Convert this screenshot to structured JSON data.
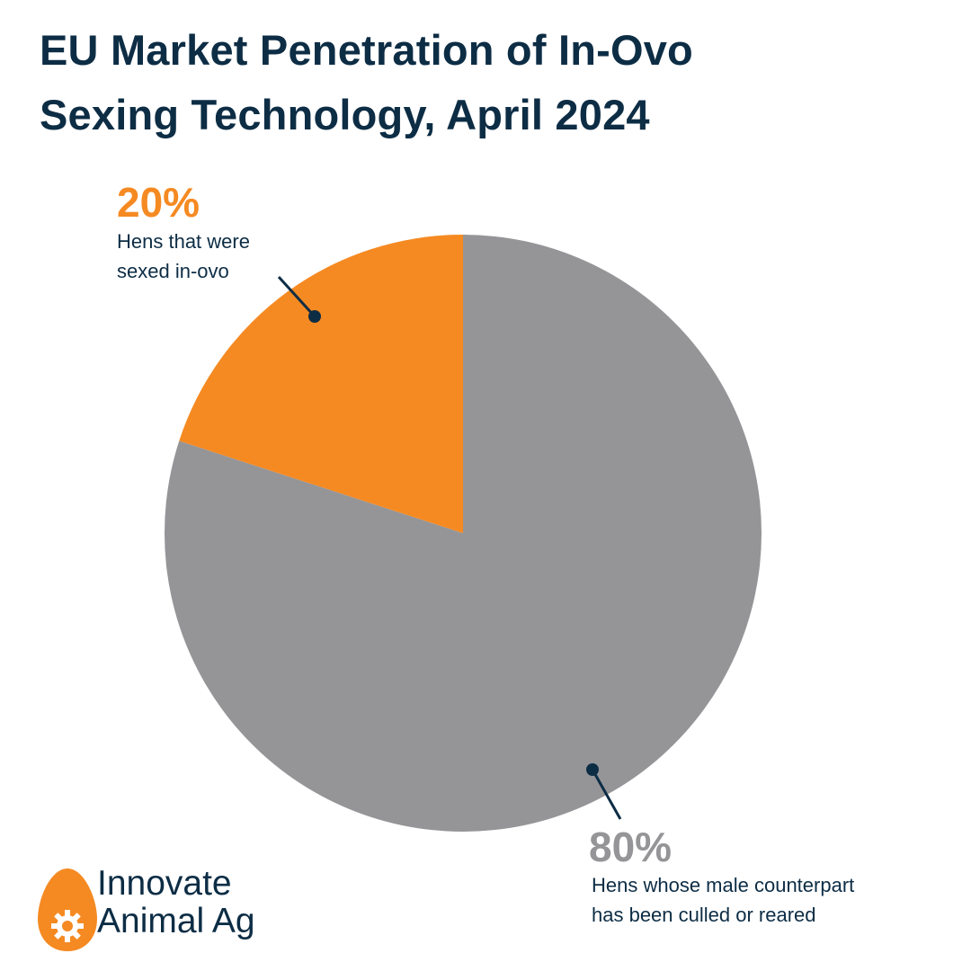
{
  "title_lines": [
    "EU Market Penetration of In-Ovo",
    "Sexing Technology, April 2024"
  ],
  "chart_data": {
    "type": "pie",
    "title": "EU Market Penetration of In-Ovo Sexing Technology, April 2024",
    "slices": [
      {
        "value": 80,
        "percent_label": "80%",
        "label_lines": [
          "Hens whose male counterpart",
          "has been culled or reared"
        ],
        "color": "#959598"
      },
      {
        "value": 20,
        "percent_label": "20%",
        "label_lines": [
          "Hens that were",
          "sexed in-ovo"
        ],
        "color": "#f58a22"
      }
    ],
    "start_angle": "12 o'clock",
    "direction": "clockwise"
  },
  "brand": {
    "name_lines": [
      "Innovate",
      "Animal Ag"
    ],
    "logo_icon": "egg-gear-icon",
    "primary_color": "#0d2d45",
    "accent_color": "#f58a22"
  }
}
